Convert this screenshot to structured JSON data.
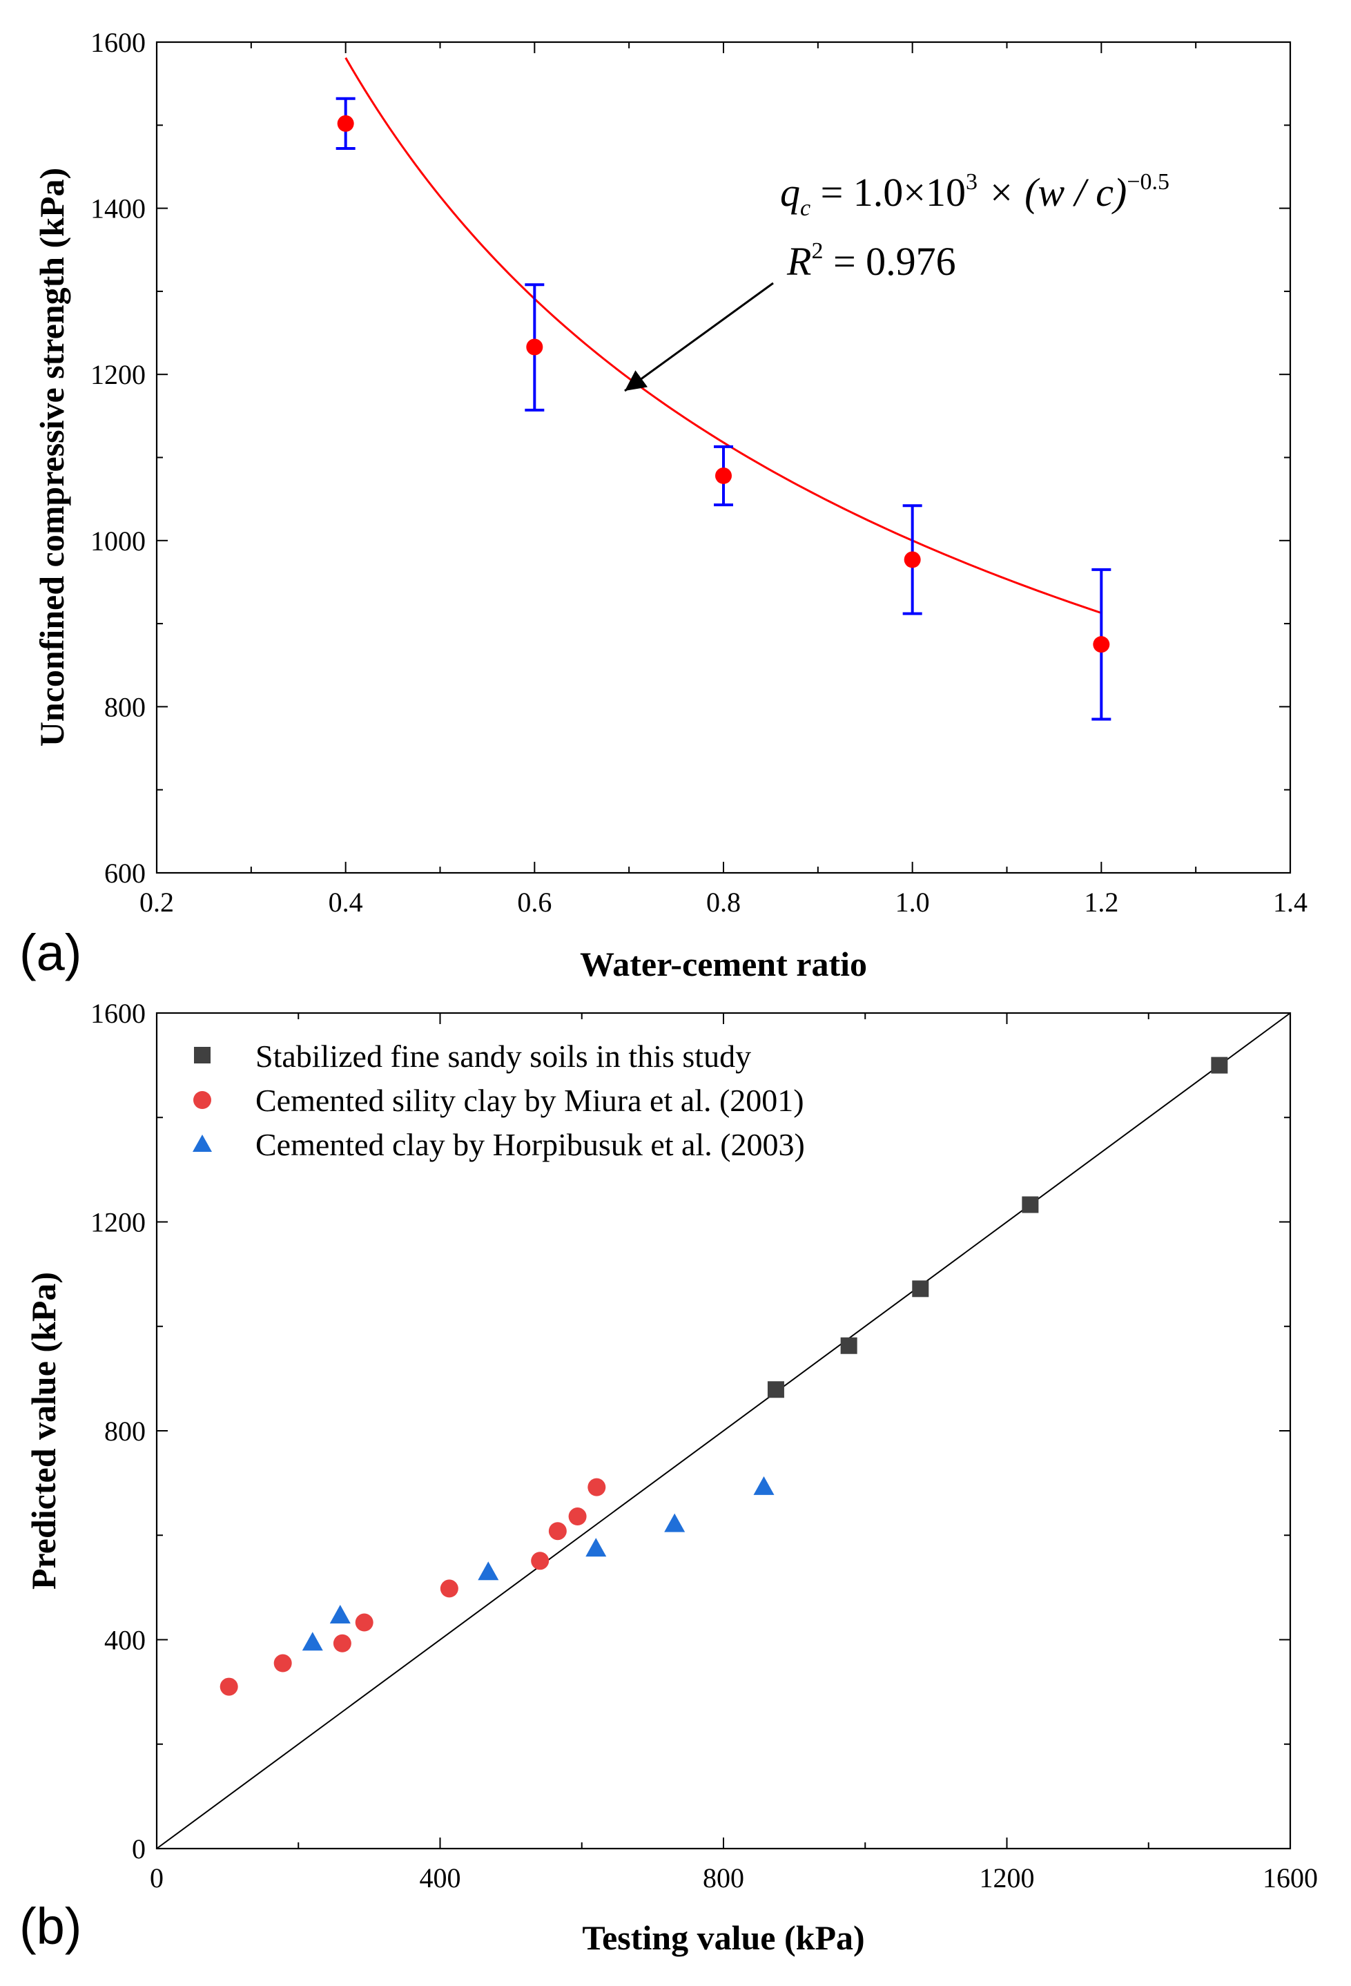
{
  "chart_data": [
    {
      "type": "scatter",
      "panel_label": "(a)",
      "xlabel": "Water-cement ratio",
      "ylabel": "Unconfined compressive strength (kPa)",
      "xlim": [
        0.2,
        1.4
      ],
      "ylim": [
        600,
        1600
      ],
      "x_ticks": [
        "0.2",
        "0.4",
        "0.6",
        "0.8",
        "1.0",
        "1.2",
        "1.4"
      ],
      "y_ticks": [
        "600",
        "800",
        "1000",
        "1200",
        "1400",
        "1600"
      ],
      "points": [
        {
          "x": 0.4,
          "y": 1502,
          "err_low": 1472,
          "err_high": 1532
        },
        {
          "x": 0.6,
          "y": 1233,
          "err_low": 1157,
          "err_high": 1308
        },
        {
          "x": 0.8,
          "y": 1078,
          "err_low": 1043,
          "err_high": 1113
        },
        {
          "x": 1.0,
          "y": 977,
          "err_low": 912,
          "err_high": 1042
        },
        {
          "x": 1.2,
          "y": 875,
          "err_low": 785,
          "err_high": 965
        }
      ],
      "fit": {
        "coef": 1000,
        "exp": -0.5,
        "x_range": [
          0.4,
          1.2
        ]
      },
      "annotation": {
        "equation_lhs": "q",
        "equation_lhs_sub": "c",
        "equation_rhs_prefix": " = 1.0×10",
        "equation_rhs_sup": "3",
        "equation_rhs_suffix": " × (w / c)",
        "equation_rhs_sup2": "−0.5",
        "r2_label": "R",
        "r2_sup": "2",
        "r2_value": " = 0.976"
      },
      "colors": {
        "points": "#ff0000",
        "fit": "#ff0000",
        "error_bars": "#0000ff",
        "arrow": "#000000"
      }
    },
    {
      "type": "scatter",
      "panel_label": "(b)",
      "xlabel": "Testing value (kPa)",
      "ylabel": "Predicted value (kPa)",
      "xlim": [
        0,
        1600
      ],
      "ylim": [
        0,
        1600
      ],
      "x_ticks": [
        "0",
        "400",
        "800",
        "1200",
        "1600"
      ],
      "y_ticks": [
        "0",
        "400",
        "800",
        "1200",
        "1600"
      ],
      "reference_line": "y = x",
      "series": [
        {
          "name": "Stabilized fine sandy soils in this study",
          "marker": "square",
          "color": "#404040",
          "points": [
            [
              874,
              879
            ],
            [
              977,
              963
            ],
            [
              1078,
              1072
            ],
            [
              1233,
              1233
            ],
            [
              1500,
              1500
            ]
          ]
        },
        {
          "name": "Cemented sility clay by Miura et al. (2001)",
          "marker": "circle",
          "color": "#e84040",
          "points": [
            [
              102,
              310
            ],
            [
              178,
              355
            ],
            [
              262,
              393
            ],
            [
              293,
              433
            ],
            [
              413,
              498
            ],
            [
              541,
              551
            ],
            [
              566,
              608
            ],
            [
              594,
              636
            ],
            [
              621,
              692
            ]
          ]
        },
        {
          "name": "Cemented clay by Horpibusuk et al. (2003)",
          "marker": "triangle",
          "color": "#1f6fd9",
          "points": [
            [
              220,
              395
            ],
            [
              259,
              447
            ],
            [
              468,
              530
            ],
            [
              620,
              575
            ],
            [
              731,
              622
            ],
            [
              857,
              693
            ]
          ]
        }
      ]
    }
  ]
}
